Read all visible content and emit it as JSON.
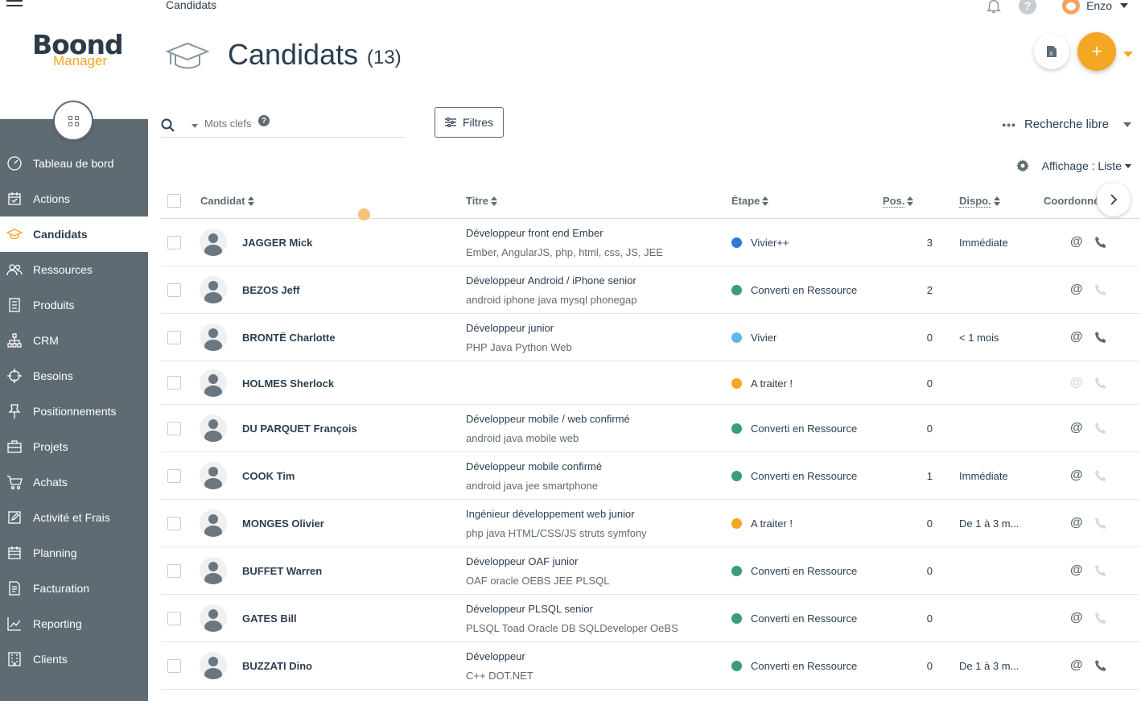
{
  "app": {
    "logo_main": "Boond",
    "logo_sub": "Manager"
  },
  "breadcrumb": "Candidats",
  "user": {
    "name": "Enzo"
  },
  "header": {
    "help_label": "?",
    "export_label": "X",
    "add_label": "+"
  },
  "nav": [
    {
      "label": "Tableau de bord",
      "icon": "dashboard-icon"
    },
    {
      "label": "Actions",
      "icon": "calendar-check-icon"
    },
    {
      "label": "Candidats",
      "icon": "graduation-cap-icon",
      "active": true
    },
    {
      "label": "Ressources",
      "icon": "people-icon"
    },
    {
      "label": "Produits",
      "icon": "document-list-icon"
    },
    {
      "label": "CRM",
      "icon": "org-chart-icon"
    },
    {
      "label": "Besoins",
      "icon": "target-icon"
    },
    {
      "label": "Positionnements",
      "icon": "pin-icon"
    },
    {
      "label": "Projets",
      "icon": "briefcase-icon"
    },
    {
      "label": "Achats",
      "icon": "cart-icon"
    },
    {
      "label": "Activité et Frais",
      "icon": "edit-icon"
    },
    {
      "label": "Planning",
      "icon": "planning-icon"
    },
    {
      "label": "Facturation",
      "icon": "invoice-icon"
    },
    {
      "label": "Reporting",
      "icon": "chart-line-icon"
    },
    {
      "label": "Clients",
      "icon": "building-icon"
    }
  ],
  "page": {
    "title": "Candidats",
    "count": "(13)"
  },
  "search": {
    "placeholder": "Mots clefs",
    "help": "?"
  },
  "filters": {
    "label": "Filtres"
  },
  "free_search": {
    "dots": "•••",
    "label": "Recherche libre"
  },
  "display": {
    "label": "Affichage : Liste"
  },
  "table": {
    "columns": {
      "candidat": "Candidat",
      "titre": "Titre",
      "etape": "Étape",
      "pos": "Pos.",
      "dispo": "Dispo.",
      "coord": "Coordonné"
    },
    "rows": [
      {
        "name": "JAGGER Mick",
        "title": "Développeur front end Ember",
        "skills": "Ember, AngularJS, php, html, css, JS, JEE",
        "stage": "Vivier++",
        "stage_color": "#2e7bd6",
        "pos": "3",
        "dispo": "Immédiate",
        "email": true,
        "phone": true
      },
      {
        "name": "BEZOS Jeff",
        "title": "Développeur Android / iPhone senior",
        "skills": "android iphone java mysql phonegap",
        "stage": "Converti en Ressource",
        "stage_color": "#3a9a82",
        "pos": "2",
        "dispo": "",
        "email": true,
        "phone": false
      },
      {
        "name": "BRONTË Charlotte",
        "title": "Développeur junior",
        "skills": "PHP Java Python Web",
        "stage": "Vivier",
        "stage_color": "#5fb8e8",
        "pos": "0",
        "dispo": "< 1 mois",
        "email": true,
        "phone": true
      },
      {
        "name": "HOLMES Sherlock",
        "title": "",
        "skills": "",
        "stage": "A traiter !",
        "stage_color": "#f5a623",
        "pos": "0",
        "dispo": "",
        "email": false,
        "phone": false
      },
      {
        "name": "DU PARQUET François",
        "title": "Développeur mobile / web confirmé",
        "skills": "android java mobile web",
        "stage": "Converti en Ressource",
        "stage_color": "#3a9a82",
        "pos": "0",
        "dispo": "",
        "email": true,
        "phone": false
      },
      {
        "name": "COOK Tim",
        "title": "Développeur mobile confirmé",
        "skills": "android java jee smartphone",
        "stage": "Converti en Ressource",
        "stage_color": "#3a9a82",
        "pos": "1",
        "dispo": "Immédiate",
        "email": true,
        "phone": false
      },
      {
        "name": "MONGES Olivier",
        "title": "Ingénieur développement web junior",
        "skills": "php java HTML/CSS/JS struts symfony",
        "stage": "A traiter !",
        "stage_color": "#f5a623",
        "pos": "0",
        "dispo": "De 1 à 3 m...",
        "email": true,
        "phone": false
      },
      {
        "name": "BUFFET Warren",
        "title": "Développeur OAF junior",
        "skills": "OAF oracle OEBS JEE PLSQL",
        "stage": "Converti en Ressource",
        "stage_color": "#3a9a82",
        "pos": "0",
        "dispo": "",
        "email": true,
        "phone": false
      },
      {
        "name": "GATES Bill",
        "title": "Développeur PLSQL senior",
        "skills": "PLSQL Toad Oracle DB SQLDeveloper OeBS",
        "stage": "Converti en Ressource",
        "stage_color": "#3a9a82",
        "pos": "0",
        "dispo": "",
        "email": true,
        "phone": false
      },
      {
        "name": "BUZZATI Dino",
        "title": "Développeur",
        "skills": "C++ DOT.NET",
        "stage": "Converti en Ressource",
        "stage_color": "#3a9a82",
        "pos": "0",
        "dispo": "De 1 à 3 m...",
        "email": true,
        "phone": true
      }
    ]
  }
}
